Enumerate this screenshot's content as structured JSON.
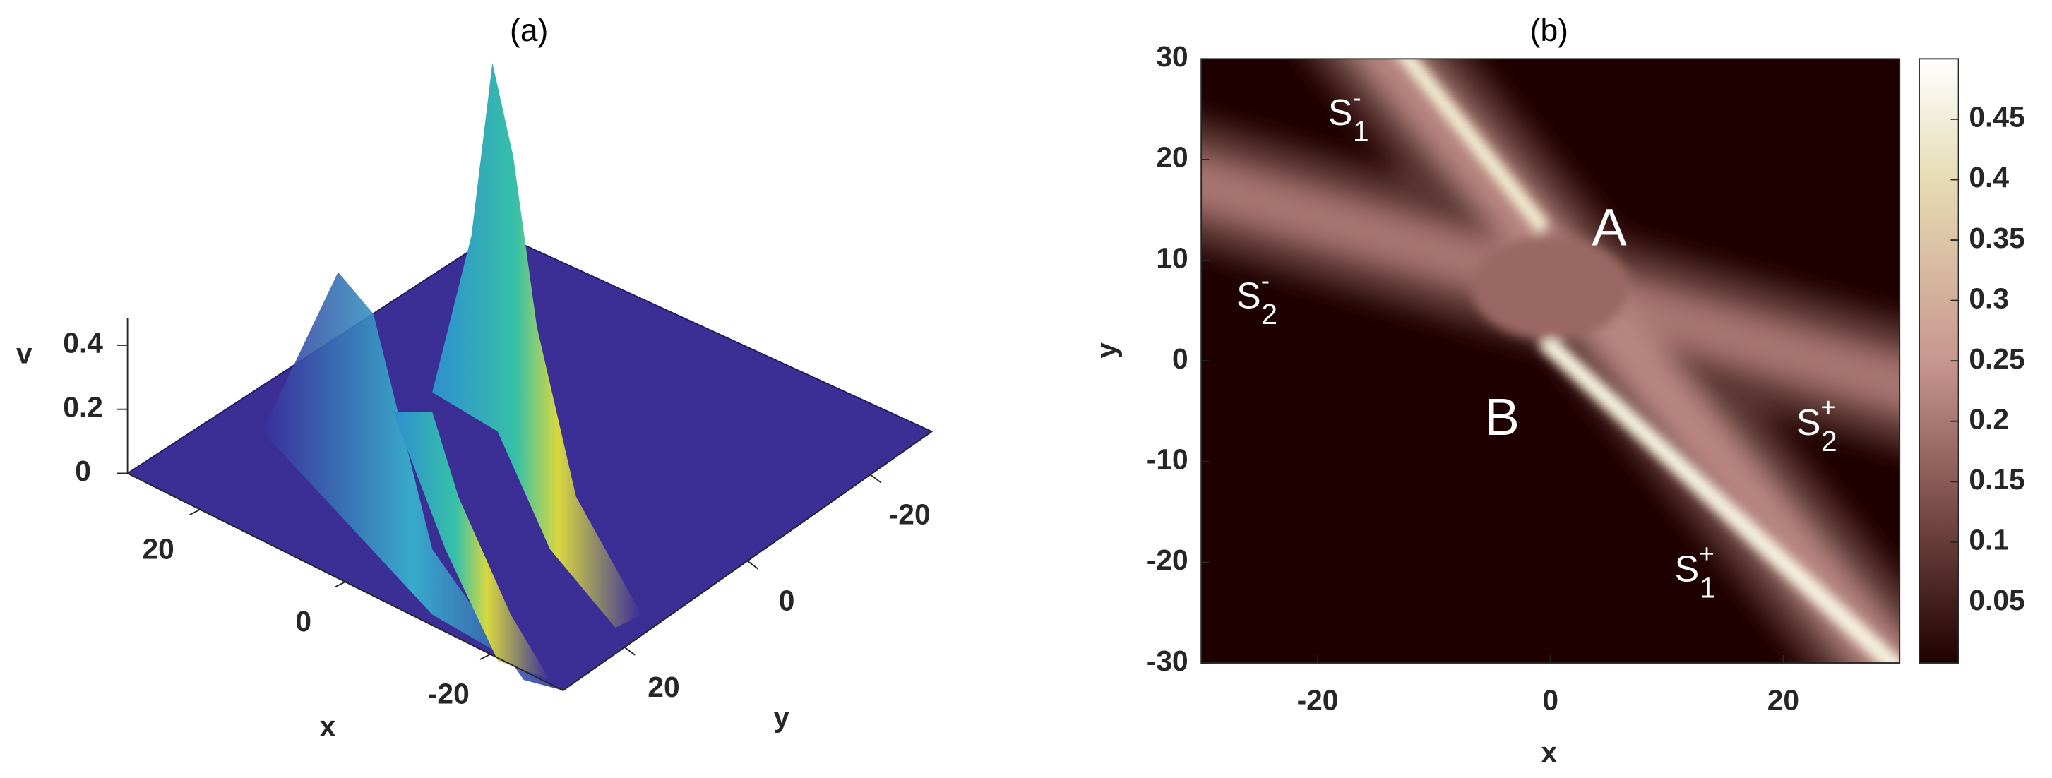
{
  "chart_data": [
    {
      "type": "surface",
      "title": "(a)",
      "x_label": "x",
      "y_label": "y",
      "z_label": "v",
      "xlim": [
        -30,
        30
      ],
      "xticks": [
        -20,
        0,
        20
      ],
      "ylim": [
        -30,
        30
      ],
      "yticks": [
        -20,
        0,
        20
      ],
      "zlim": [
        0,
        0.5
      ],
      "zticks": [
        0,
        0.2,
        0.4
      ]
    },
    {
      "type": "contour",
      "title": "(b)",
      "x_label": "x",
      "y_label": "y",
      "xlim": [
        -30,
        30
      ],
      "xticks": [
        -20,
        0,
        20
      ],
      "ylim": [
        -30,
        30
      ],
      "yticks": [
        -30,
        -20,
        -10,
        0,
        10,
        20,
        30
      ],
      "clim": [
        0,
        0.5
      ],
      "cticks": [
        0.05,
        0.1,
        0.15,
        0.2,
        0.25,
        0.3,
        0.35,
        0.4,
        0.45
      ],
      "annotations": [
        {
          "text": "A"
        },
        {
          "text": "B"
        },
        {
          "text": "S",
          "sub": "1",
          "sup": "-"
        },
        {
          "text": "S",
          "sub": "2",
          "sup": "-"
        },
        {
          "text": "S",
          "sub": "2",
          "sup": "+"
        },
        {
          "text": "S",
          "sub": "1",
          "sup": "+"
        }
      ]
    }
  ]
}
